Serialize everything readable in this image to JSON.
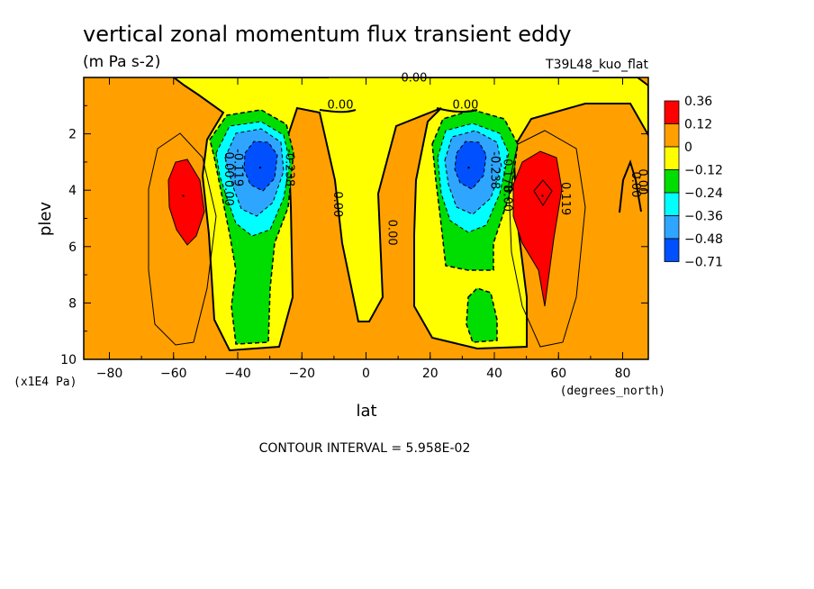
{
  "chart_data": {
    "type": "filled-contour",
    "title": "vertical zonal momentum flux transient eddy",
    "units": "(m Pa s-2)",
    "run_label": "T39L48_kuo_flat",
    "xlabel": "lat",
    "xunits": "(degrees_north)",
    "ylabel": "plev",
    "yunits": "(x1E4 Pa)",
    "xlim": [
      -88,
      88
    ],
    "ylim": [
      10,
      0
    ],
    "x_ticks": [
      "-80",
      "-60",
      "-40",
      "-20",
      "0",
      "20",
      "40",
      "60",
      "80"
    ],
    "y_ticks": [
      "2",
      "4",
      "6",
      "8",
      "10"
    ],
    "contour_interval_text": "CONTOUR INTERVAL = 5.958E-02",
    "legend": {
      "labels": [
        "0.36",
        "0.12",
        "0",
        "−0.12",
        "−0.24",
        "−0.36",
        "−0.48",
        "−0.71"
      ],
      "colors": [
        "#ff0000",
        "#ffa000",
        "#ffff00",
        "#00dd00",
        "#00ffff",
        "#2ea6ff",
        "#0050ff"
      ]
    },
    "contour_labels": [
      "0.00",
      "0.00",
      "0.00",
      "0.00",
      "0.00",
      "0.00",
      "0.00",
      "0.00",
      "0.00",
      "-0.119",
      "-0.238",
      "-0.238",
      "-0.178",
      "0.119",
      "0.00"
    ],
    "features": [
      {
        "kind": "min",
        "lat": -33,
        "plev": 3.2,
        "value_class": "-0.71"
      },
      {
        "kind": "min",
        "lat": 32,
        "plev": 3.2,
        "value_class": "-0.71"
      },
      {
        "kind": "max",
        "lat": -57,
        "plev": 4.2,
        "value_class": "0.36"
      },
      {
        "kind": "max",
        "lat": 55,
        "plev": 4.2,
        "value_class": "0.36"
      }
    ]
  }
}
